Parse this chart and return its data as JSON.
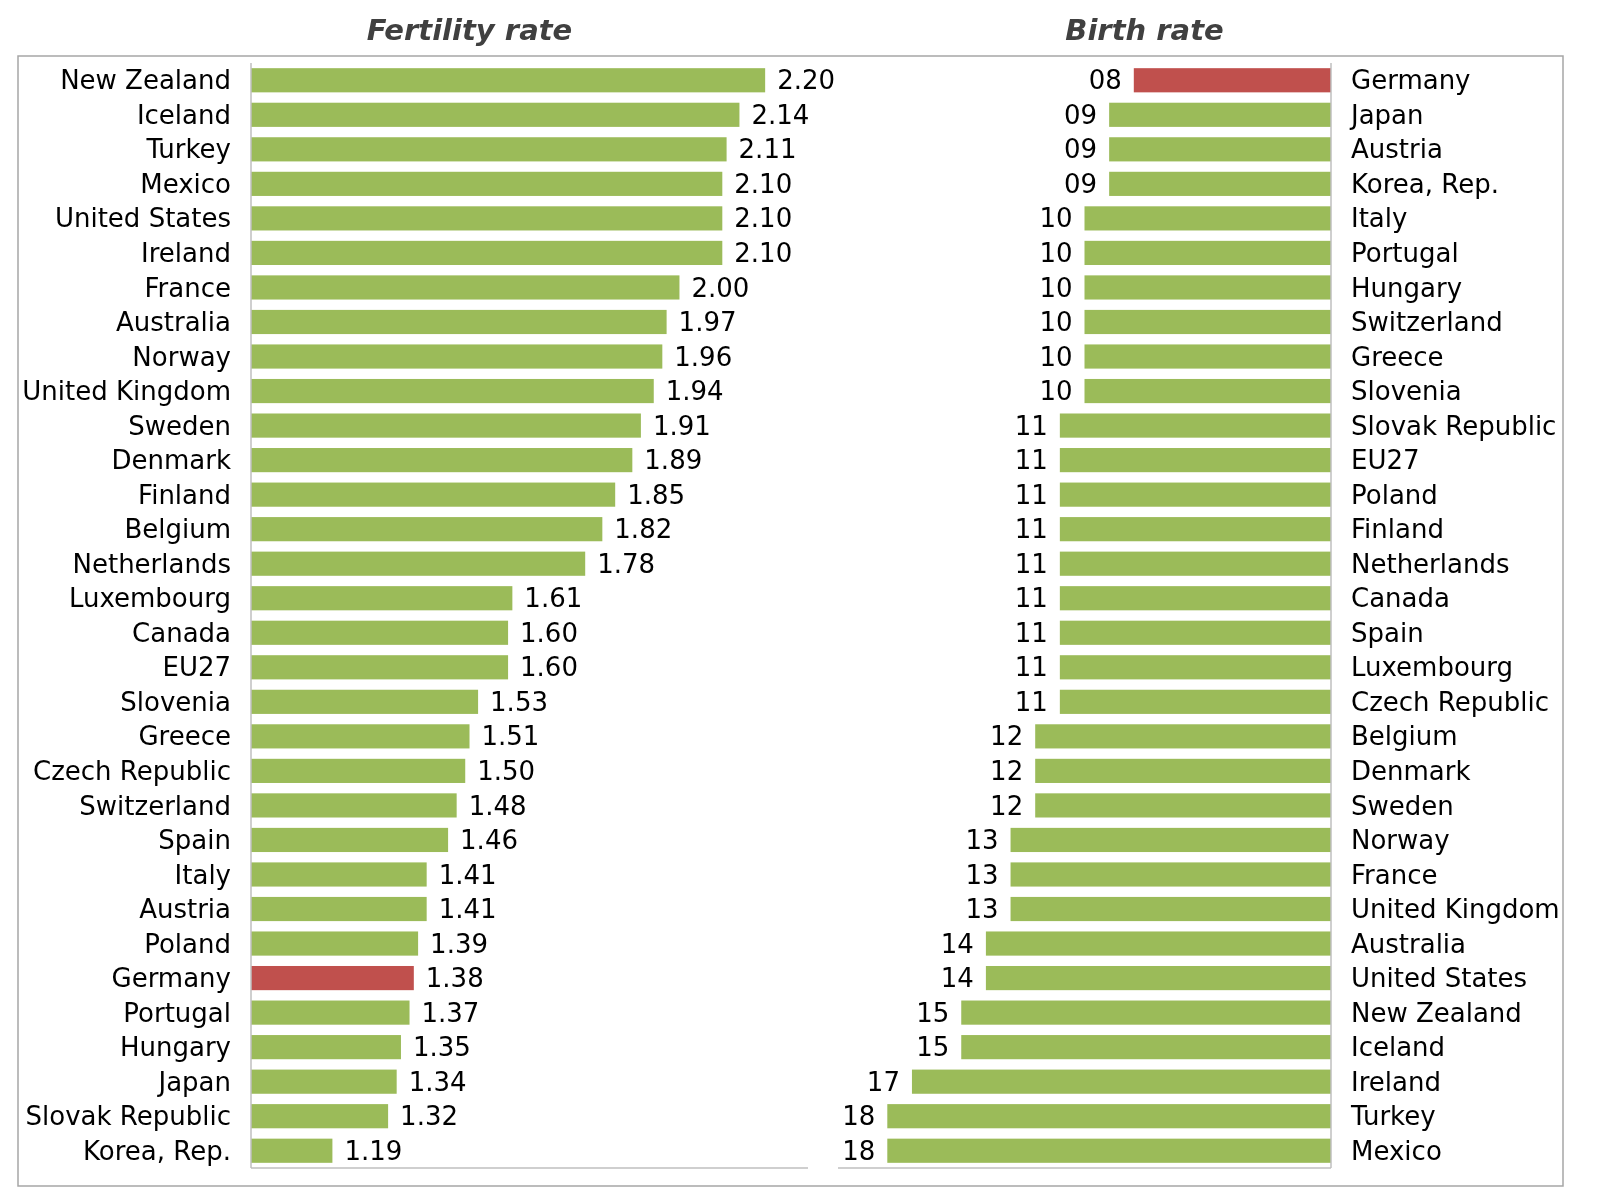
{
  "chart_data": [
    {
      "type": "bar",
      "orientation": "horizontal",
      "title": "Fertility rate",
      "categories": [
        "New Zealand",
        "Iceland",
        "Turkey",
        "Mexico",
        "United States",
        "Ireland",
        "France",
        "Australia",
        "Norway",
        "United Kingdom",
        "Sweden",
        "Denmark",
        "Finland",
        "Belgium",
        "Netherlands",
        "Luxembourg",
        "Canada",
        "EU27",
        "Slovenia",
        "Greece",
        "Czech Republic",
        "Switzerland",
        "Spain",
        "Italy",
        "Austria",
        "Poland",
        "Germany",
        "Portugal",
        "Hungary",
        "Japan",
        "Slovak Republic",
        "Korea, Rep."
      ],
      "values": [
        2.2,
        2.14,
        2.11,
        2.1,
        2.1,
        2.1,
        2.0,
        1.97,
        1.96,
        1.94,
        1.91,
        1.89,
        1.85,
        1.82,
        1.78,
        1.61,
        1.6,
        1.6,
        1.53,
        1.51,
        1.5,
        1.48,
        1.46,
        1.41,
        1.41,
        1.39,
        1.38,
        1.37,
        1.35,
        1.34,
        1.32,
        1.19
      ],
      "value_labels": [
        "2.20",
        "2.14",
        "2.11",
        "2.10",
        "2.10",
        "2.10",
        "2.00",
        "1.97",
        "1.96",
        "1.94",
        "1.91",
        "1.89",
        "1.85",
        "1.82",
        "1.78",
        "1.61",
        "1.60",
        "1.60",
        "1.53",
        "1.51",
        "1.50",
        "1.48",
        "1.46",
        "1.41",
        "1.41",
        "1.39",
        "1.38",
        "1.37",
        "1.35",
        "1.34",
        "1.32",
        "1.19"
      ],
      "colors": [
        "#9bbb59",
        "#9bbb59",
        "#9bbb59",
        "#9bbb59",
        "#9bbb59",
        "#9bbb59",
        "#9bbb59",
        "#9bbb59",
        "#9bbb59",
        "#9bbb59",
        "#9bbb59",
        "#9bbb59",
        "#9bbb59",
        "#9bbb59",
        "#9bbb59",
        "#9bbb59",
        "#9bbb59",
        "#9bbb59",
        "#9bbb59",
        "#9bbb59",
        "#9bbb59",
        "#9bbb59",
        "#9bbb59",
        "#9bbb59",
        "#9bbb59",
        "#9bbb59",
        "#c0504d",
        "#9bbb59",
        "#9bbb59",
        "#9bbb59",
        "#9bbb59",
        "#9bbb59"
      ],
      "xlim": [
        1,
        2.3
      ],
      "tick_labels": false
    },
    {
      "type": "bar",
      "orientation": "horizontal",
      "title": "Birth rate",
      "categories": [
        "Germany",
        "Japan",
        "Austria",
        "Korea, Rep.",
        "Italy",
        "Portugal",
        "Hungary",
        "Switzerland",
        "Greece",
        "Slovenia",
        "Slovak Republic",
        "EU27",
        "Poland",
        "Finland",
        "Netherlands",
        "Canada",
        "Spain",
        "Luxembourg",
        "Czech Republic",
        "Belgium",
        "Denmark",
        "Sweden",
        "Norway",
        "France",
        "United Kingdom",
        "Australia",
        "United States",
        "New Zealand",
        "Iceland",
        "Ireland",
        "Turkey",
        "Mexico"
      ],
      "values": [
        8,
        9,
        9,
        9,
        10,
        10,
        10,
        10,
        10,
        10,
        11,
        11,
        11,
        11,
        11,
        11,
        11,
        11,
        11,
        12,
        12,
        12,
        13,
        13,
        13,
        14,
        14,
        15,
        15,
        17,
        18,
        18
      ],
      "value_labels": [
        "08",
        "09",
        "09",
        "09",
        "10",
        "10",
        "10",
        "10",
        "10",
        "10",
        "11",
        "11",
        "11",
        "11",
        "11",
        "11",
        "11",
        "11",
        "11",
        "12",
        "12",
        "12",
        "13",
        "13",
        "13",
        "14",
        "14",
        "15",
        "15",
        "17",
        "18",
        "18"
      ],
      "colors": [
        "#c0504d",
        "#9bbb59",
        "#9bbb59",
        "#9bbb59",
        "#9bbb59",
        "#9bbb59",
        "#9bbb59",
        "#9bbb59",
        "#9bbb59",
        "#9bbb59",
        "#9bbb59",
        "#9bbb59",
        "#9bbb59",
        "#9bbb59",
        "#9bbb59",
        "#9bbb59",
        "#9bbb59",
        "#9bbb59",
        "#9bbb59",
        "#9bbb59",
        "#9bbb59",
        "#9bbb59",
        "#9bbb59",
        "#9bbb59",
        "#9bbb59",
        "#9bbb59",
        "#9bbb59",
        "#9bbb59",
        "#9bbb59",
        "#9bbb59",
        "#9bbb59",
        "#9bbb59"
      ],
      "xlim": [
        20,
        0
      ],
      "tick_labels": false
    }
  ]
}
